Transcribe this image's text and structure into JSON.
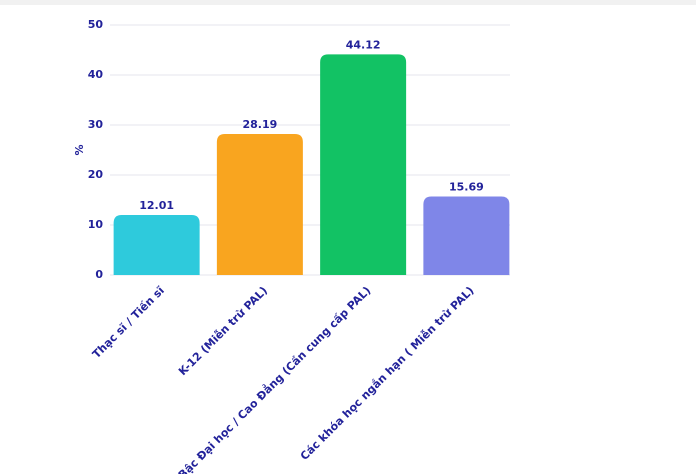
{
  "chart_data": {
    "type": "bar",
    "y_label": "%",
    "categories": [
      "Thạc sĩ / Tiến sĩ",
      "K-12 (Miễn trừ PAL)",
      "Bậc Đại học / Cao Đẳng (Cần cung cấp PAL)",
      "Các khóa học ngắn hạn ( Miễn trừ PAL)"
    ],
    "values": [
      12.01,
      28.19,
      44.12,
      15.69
    ],
    "colors": [
      "#2ecadc",
      "#f9a51f",
      "#12c264",
      "#7f86e8"
    ],
    "ylim": [
      0,
      50
    ],
    "yticks": [
      0,
      10,
      20,
      30,
      40,
      50
    ],
    "grid": true
  }
}
